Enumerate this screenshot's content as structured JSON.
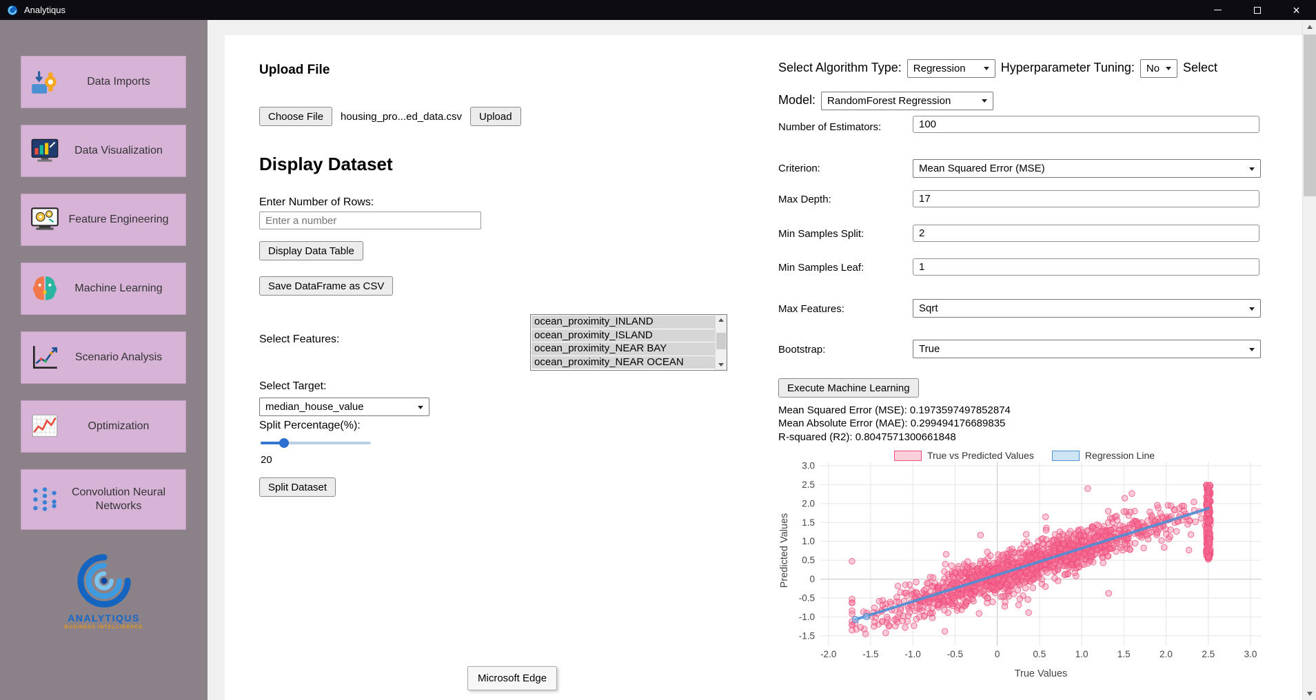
{
  "window": {
    "title": "Analytiqus"
  },
  "sidebar": {
    "items": [
      {
        "label": "Data Imports"
      },
      {
        "label": "Data Visualization"
      },
      {
        "label": "Feature Engineering"
      },
      {
        "label": "Machine Learning"
      },
      {
        "label": "Scenario Analysis"
      },
      {
        "label": "Optimization"
      },
      {
        "label": "Convolution Neural Networks"
      }
    ],
    "logo_title": "ANALYTIQUS",
    "logo_subtitle": "BUSINESS INTELLIGENCE"
  },
  "upload": {
    "heading": "Upload File",
    "choose_file_label": "Choose File",
    "file_name": "housing_pro...ed_data.csv",
    "upload_label": "Upload"
  },
  "dataset": {
    "heading": "Display Dataset",
    "rows_label": "Enter Number of Rows:",
    "rows_placeholder": "Enter a number",
    "display_table_label": "Display Data Table",
    "save_csv_label": "Save DataFrame as CSV",
    "features_label": "Select Features:",
    "features_options": [
      "ocean_proximity_INLAND",
      "ocean_proximity_ISLAND",
      "ocean_proximity_NEAR BAY",
      "ocean_proximity_NEAR OCEAN"
    ],
    "target_label": "Select Target:",
    "target_value": "median_house_value",
    "split_label": "Split Percentage(%):",
    "split_percent": "20",
    "split_button_label": "Split Dataset"
  },
  "model": {
    "algorithm_label": "Select Algorithm Type:",
    "algorithm_value": "Regression",
    "tuning_label": "Hyperparameter Tuning:",
    "tuning_value": "No",
    "model_label": "Select Model:",
    "model_value": "RandomForest Regression",
    "fields": [
      {
        "label": "Number of Estimators:",
        "control": "input",
        "value": "100"
      },
      {
        "label": "Criterion:",
        "control": "select",
        "value": "Mean Squared Error (MSE)"
      },
      {
        "label": "Max Depth:",
        "control": "input",
        "value": "17"
      },
      {
        "label": "Min Samples Split:",
        "control": "input",
        "value": "2"
      },
      {
        "label": "Min Samples Leaf:",
        "control": "input",
        "value": "1"
      },
      {
        "label": "Max Features:",
        "control": "select",
        "value": "Sqrt"
      },
      {
        "label": "Bootstrap:",
        "control": "select",
        "value": "True"
      }
    ],
    "execute_label": "Execute Machine Learning",
    "metrics": [
      "Mean Squared Error (MSE): 0.1973597497852874",
      "Mean Absolute Error (MAE): 0.299494176689835",
      "R-squared (R2): 0.8047571300661848"
    ]
  },
  "chart_data": {
    "type": "scatter",
    "title": "",
    "xlabel": "True Values",
    "ylabel": "Predicted Values",
    "x_ticks": [
      -2,
      -1.5,
      -1,
      -0.5,
      0,
      0.5,
      1,
      1.5,
      2,
      2.5,
      3
    ],
    "y_ticks": [
      -1.5,
      -1,
      -0.5,
      0,
      0.5,
      1,
      1.5,
      2,
      2.5,
      3
    ],
    "xlim": [
      -2.35,
      3.15
    ],
    "ylim": [
      -1.77,
      3.05
    ],
    "grid": true,
    "legend_position": "top-center",
    "legend": [
      {
        "label": "True vs Predicted Values",
        "fill": "#fbd0da",
        "border": "#ee4d78"
      },
      {
        "label": "Regression Line",
        "fill": "#cde4f4",
        "border": "#4e8fd6"
      }
    ],
    "series": [
      {
        "name": "True vs Predicted Values",
        "type": "scatter_cloud",
        "marker_color": "#ee4d78",
        "fill_color": "#f7739a",
        "cloud": {
          "seed": 42,
          "n_points": 1400,
          "n_outliers": 80,
          "x_mean": 0.35,
          "x_sd": 0.85,
          "x_min": -1.72,
          "x_max": 2.5,
          "slope": 0.72,
          "intercept": 0.1,
          "noise_sd": 0.26,
          "outlier_noise_sd": 0.6,
          "y_min": -1.45,
          "y_max": 2.58
        },
        "clip_stripe": {
          "x": 2.5,
          "n_points": 190,
          "y_min": 0.55,
          "y_max": 2.5
        }
      },
      {
        "name": "Regression Line",
        "type": "line",
        "color": "#4e8fd6",
        "points": [
          [
            -1.68,
            -1.07
          ],
          [
            2.5,
            1.87
          ]
        ],
        "markers": [
          [
            -1.68,
            -1.07
          ],
          [
            -1.55,
            -0.99
          ]
        ]
      }
    ]
  },
  "tooltip": {
    "text": "Microsoft Edge"
  }
}
